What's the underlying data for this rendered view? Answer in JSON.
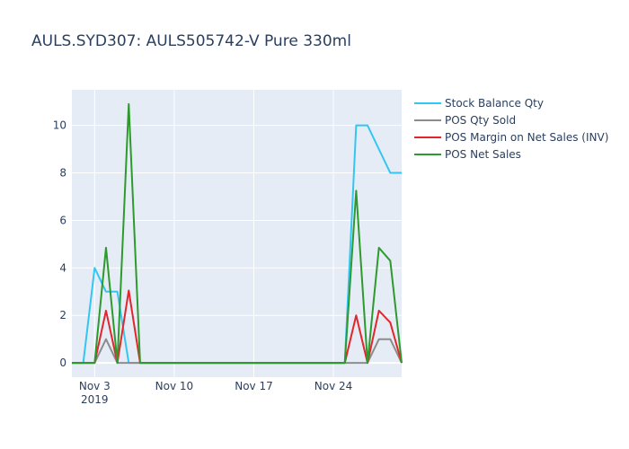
{
  "chart_data": {
    "type": "line",
    "title": "AULS.SYD307:  AULS505742-V Pure 330ml",
    "xlabel": "",
    "ylabel": "",
    "x_start": "2019-11-01",
    "x_range": [
      "2019-11-01",
      "2019-11-30"
    ],
    "ylim": [
      -0.6,
      11.5
    ],
    "y_ticks": [
      0,
      2,
      4,
      6,
      8,
      10
    ],
    "x_ticks": [
      {
        "date": "2019-11-03",
        "label": "Nov 3",
        "sublabel": "2019"
      },
      {
        "date": "2019-11-10",
        "label": "Nov 10",
        "sublabel": ""
      },
      {
        "date": "2019-11-17",
        "label": "Nov 17",
        "sublabel": ""
      },
      {
        "date": "2019-11-24",
        "label": "Nov 24",
        "sublabel": ""
      }
    ],
    "x": [
      "2019-11-01",
      "2019-11-02",
      "2019-11-03",
      "2019-11-04",
      "2019-11-05",
      "2019-11-06",
      "2019-11-07",
      "2019-11-08",
      "2019-11-09",
      "2019-11-10",
      "2019-11-11",
      "2019-11-12",
      "2019-11-13",
      "2019-11-14",
      "2019-11-15",
      "2019-11-16",
      "2019-11-17",
      "2019-11-18",
      "2019-11-19",
      "2019-11-20",
      "2019-11-21",
      "2019-11-22",
      "2019-11-23",
      "2019-11-24",
      "2019-11-25",
      "2019-11-26",
      "2019-11-27",
      "2019-11-28",
      "2019-11-29",
      "2019-11-30"
    ],
    "grid": true,
    "legend_position": "right",
    "series": [
      {
        "name": "Stock Balance Qty",
        "color": "#33c6f2",
        "values": [
          0,
          0,
          4,
          3,
          3,
          0,
          0,
          0,
          0,
          0,
          0,
          0,
          0,
          0,
          0,
          0,
          0,
          0,
          0,
          0,
          0,
          0,
          0,
          0,
          0,
          10,
          10,
          9,
          8,
          8
        ]
      },
      {
        "name": "POS Qty Sold",
        "color": "#8c8c8c",
        "values": [
          0,
          0,
          0,
          1,
          0,
          0,
          0,
          0,
          0,
          0,
          0,
          0,
          0,
          0,
          0,
          0,
          0,
          0,
          0,
          0,
          0,
          0,
          0,
          0,
          0,
          0,
          0,
          1,
          1,
          0
        ]
      },
      {
        "name": "POS Margin on Net Sales (INV)",
        "color": "#e2262c",
        "values": [
          0,
          0,
          0,
          2.2,
          0,
          3.05,
          0,
          0,
          0,
          0,
          0,
          0,
          0,
          0,
          0,
          0,
          0,
          0,
          0,
          0,
          0,
          0,
          0,
          0,
          0,
          2.0,
          0,
          2.2,
          1.7,
          0
        ]
      },
      {
        "name": "POS Net Sales",
        "color": "#2e9a2e",
        "values": [
          0,
          0,
          0,
          4.85,
          0,
          10.9,
          0,
          0,
          0,
          0,
          0,
          0,
          0,
          0,
          0,
          0,
          0,
          0,
          0,
          0,
          0,
          0,
          0,
          0,
          0,
          7.25,
          0,
          4.85,
          4.3,
          0
        ]
      }
    ]
  }
}
